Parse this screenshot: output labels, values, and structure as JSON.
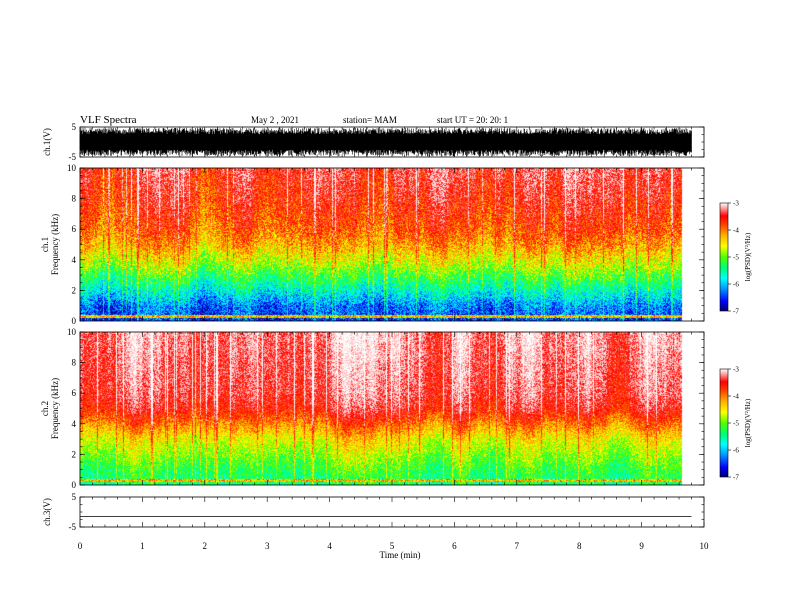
{
  "header": {
    "title": "VLF Spectra",
    "date": "May 2 , 2021",
    "station": "station= MAM",
    "start": "start UT = 20: 20: 1"
  },
  "colormap": [
    "#000070",
    "#0000ff",
    "#0090ff",
    "#00ffff",
    "#00ff70",
    "#50ff00",
    "#ffff00",
    "#ffb000",
    "#ff4000",
    "#ff0000",
    "#ffb0b0",
    "#ffffff"
  ],
  "chart_data": [
    {
      "type": "line",
      "panel": "channel-1-waveform",
      "ylabel": "ch.1(V)",
      "ylim": [
        -5,
        5
      ],
      "yticks": [
        "5",
        "-5"
      ],
      "xlim": [
        0,
        10
      ],
      "description_values": "dense broadband noise filling roughly -5 to 5 V over 0-9.8 min"
    },
    {
      "type": "heatmap",
      "panel": "channel-1-spectrogram",
      "ylabel_top": "ch.1",
      "ylabel": "Frequency (kHz)",
      "ylim": [
        0,
        10
      ],
      "yticks": [
        "0",
        "2",
        "4",
        "6",
        "8",
        "10"
      ],
      "xlim": [
        0,
        10
      ],
      "data_extent_min": 9.8,
      "colorbar": {
        "label": "log(PSD)(V²/Hz)",
        "range": [
          -7,
          -3
        ],
        "ticks": [
          "-3",
          "-4",
          "-5",
          "-6",
          "-7"
        ]
      },
      "band_profile_khz": [
        0,
        1,
        2,
        3,
        4,
        5,
        6,
        8,
        10
      ],
      "band_profile_log_psd": [
        -6.5,
        -6.3,
        -5.8,
        -5.3,
        -4.8,
        -4.4,
        -4.1,
        -3.8,
        -3.6
      ]
    },
    {
      "type": "heatmap",
      "panel": "channel-2-spectrogram",
      "ylabel_top": "ch.2",
      "ylabel": "Frequency (kHz)",
      "ylim": [
        0,
        10
      ],
      "yticks": [
        "0",
        "2",
        "4",
        "6",
        "8",
        "10"
      ],
      "xlim": [
        0,
        10
      ],
      "data_extent_min": 9.8,
      "colorbar": {
        "label": "log(PSD)(V²/Hz)",
        "range": [
          -7,
          -3
        ],
        "ticks": [
          "-3",
          "-4",
          "-5",
          "-6",
          "-7"
        ]
      },
      "band_profile_khz": [
        0,
        1,
        2,
        3,
        4,
        5,
        6,
        8,
        10
      ],
      "band_profile_log_psd": [
        -5.6,
        -5.4,
        -5.1,
        -4.8,
        -4.3,
        -3.8,
        -3.6,
        -3.5,
        -3.4
      ]
    },
    {
      "type": "line",
      "panel": "channel-3-waveform",
      "ylabel": "ch.3(V)",
      "ylim": [
        -5,
        5
      ],
      "yticks": [
        "5",
        "-5"
      ],
      "xlim": [
        0,
        10
      ],
      "x": [
        0,
        9.8
      ],
      "y": [
        -1.5,
        -1.5
      ]
    }
  ],
  "xaxis": {
    "label": "Time (min)",
    "ticks": [
      "0",
      "1",
      "2",
      "3",
      "4",
      "5",
      "6",
      "7",
      "8",
      "9",
      "10"
    ]
  }
}
